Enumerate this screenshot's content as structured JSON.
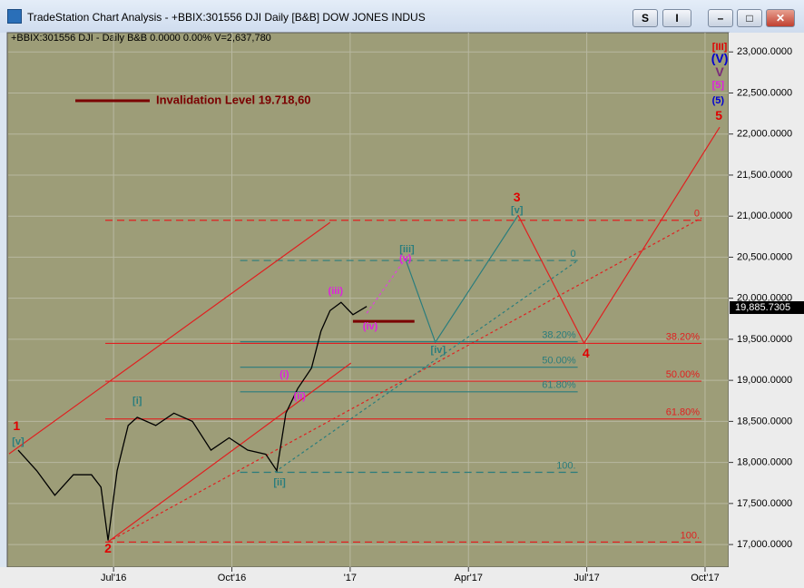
{
  "window": {
    "title": "TradeStation Chart Analysis - +BBIX:301556 DJI Daily [B&B] DOW JONES INDUS",
    "buttons": [
      "S",
      "I"
    ]
  },
  "chart_data": {
    "type": "line",
    "header": "+BBIX:301556 DJI - Daily  B&B  0.0000  0.00%  V=2,637,780",
    "x": [
      3.58,
      4.05,
      4.51,
      4.98,
      5.44,
      5.68,
      5.86,
      6.09,
      6.37,
      6.6,
      7.07,
      7.53,
      8.0,
      8.47,
      8.93,
      9.4,
      9.86,
      10.14,
      10.37,
      10.67,
      11.02,
      11.26,
      11.49,
      11.77,
      12.07,
      12.42
    ],
    "values": [
      18150,
      17900,
      17600,
      17850,
      17850,
      17700,
      17050,
      17900,
      18450,
      18550,
      18450,
      18600,
      18500,
      18150,
      18300,
      18150,
      18100,
      17900,
      18600,
      18900,
      19150,
      19600,
      19850,
      19950,
      19800,
      19900
    ],
    "color": "#000000",
    "last_price": {
      "value": 19885.7305,
      "label": "19,885.7305"
    },
    "xlim": [
      3.35,
      21.53
    ],
    "ylim": [
      16780,
      23080
    ],
    "xticks": [
      {
        "value": 6,
        "label": "Jul'16"
      },
      {
        "value": 9,
        "label": "Oct'16"
      },
      {
        "value": 12,
        "label": "'17"
      },
      {
        "value": 15,
        "label": "Apr'17"
      },
      {
        "value": 18,
        "label": "Jul'17"
      },
      {
        "value": 21,
        "label": "Oct'17"
      }
    ],
    "yticks": [
      {
        "value": 17000,
        "label": "17,000.0000"
      },
      {
        "value": 17500,
        "label": "17,500.0000"
      },
      {
        "value": 18000,
        "label": "18,000.0000"
      },
      {
        "value": 18500,
        "label": "18,500.0000"
      },
      {
        "value": 19000,
        "label": "19,000.0000"
      },
      {
        "value": 19500,
        "label": "19,500.0000"
      },
      {
        "value": 20000,
        "label": "20,000.0000"
      },
      {
        "value": 20500,
        "label": "20,500.0000"
      },
      {
        "value": 21000,
        "label": "21,000.0000"
      },
      {
        "value": 21500,
        "label": "21,500.0000"
      },
      {
        "value": 22000,
        "label": "22,000.0000"
      },
      {
        "value": 22500,
        "label": "22,500.0000"
      },
      {
        "value": 23000,
        "label": "23,000.0000"
      }
    ],
    "grid": true,
    "lines": [
      {
        "x": [
          3.35,
          11.49
        ],
        "values": [
          18105,
          20923
        ],
        "color": "#e02020",
        "dash": false
      },
      {
        "x": [
          5.86,
          12.02
        ],
        "values": [
          17033,
          19210
        ],
        "color": "#e02020",
        "dash": false
      },
      {
        "x": [
          5.86,
          20.91
        ],
        "values": [
          17033,
          20978
        ],
        "color": "#e02020",
        "dash": true
      },
      {
        "x": [
          10.09,
          17.77
        ],
        "values": [
          17884,
          20459
        ],
        "color": "#2a7d7d",
        "dash": true
      },
      {
        "x": [
          12.42,
          13.4
        ],
        "values": [
          19818,
          20481
        ],
        "color": "#e040e0",
        "dash": true
      },
      {
        "x": [
          13.4,
          14.16,
          16.26
        ],
        "values": [
          20481,
          19464,
          21011
        ],
        "color": "#2a7d7d",
        "dash": false
      },
      {
        "x": [
          16.26,
          17.93,
          21.37
        ],
        "values": [
          21011,
          19453,
          22083
        ],
        "color": "#e02020",
        "dash": false
      }
    ],
    "fib_levels": [
      {
        "label": "0",
        "value": 20950,
        "x": [
          5.79,
          20.91
        ],
        "color": "#e02020",
        "dash": true
      },
      {
        "label": "38.20%",
        "value": 19450,
        "x": [
          5.79,
          20.91
        ],
        "color": "#e02020",
        "dash": false
      },
      {
        "label": "50.00%",
        "value": 18990,
        "x": [
          5.79,
          20.91
        ],
        "color": "#e02020",
        "dash": false
      },
      {
        "label": "61.80%",
        "value": 18530,
        "x": [
          5.79,
          20.91
        ],
        "color": "#e02020",
        "dash": false
      },
      {
        "label": "100.",
        "value": 17030,
        "x": [
          5.79,
          20.91
        ],
        "color": "#e02020",
        "dash": true
      },
      {
        "label": "0",
        "value": 20460,
        "x": [
          9.21,
          17.77
        ],
        "color": "#2a7d7d",
        "dash": true
      },
      {
        "label": "38.20%",
        "value": 19470,
        "x": [
          9.21,
          17.77
        ],
        "color": "#2a7d7d",
        "dash": false
      },
      {
        "label": "50.00%",
        "value": 19160,
        "x": [
          9.21,
          17.77
        ],
        "color": "#2a7d7d",
        "dash": false
      },
      {
        "label": "61.80%",
        "value": 18860,
        "x": [
          9.21,
          17.77
        ],
        "color": "#2a7d7d",
        "dash": false
      },
      {
        "label": "100.",
        "value": 17880,
        "x": [
          9.21,
          17.77
        ],
        "color": "#2a7d7d",
        "dash": true
      }
    ],
    "invalidation": {
      "label": "Invalidation Level 19.718,60",
      "value": 19718.6,
      "x": [
        12.07,
        13.63
      ],
      "color": "#7a0000"
    },
    "annotations": [
      {
        "text": "1",
        "x": 3.54,
        "y": 18436,
        "color": "#e00000"
      },
      {
        "text": "[v]",
        "x": 3.58,
        "y": 18249,
        "color": "#2a7d7d"
      },
      {
        "text": "2",
        "x": 5.86,
        "y": 16945,
        "color": "#e00000"
      },
      {
        "text": "[i]",
        "x": 6.6,
        "y": 18746,
        "color": "#2a7d7d"
      },
      {
        "text": "[ii]",
        "x": 10.21,
        "y": 17751,
        "color": "#2a7d7d"
      },
      {
        "text": "(i)",
        "x": 10.33,
        "y": 19066,
        "color": "#e020e0"
      },
      {
        "text": "(ii)",
        "x": 10.72,
        "y": 18801,
        "color": "#e020e0"
      },
      {
        "text": "(iii)",
        "x": 11.63,
        "y": 20083,
        "color": "#e020e0"
      },
      {
        "text": "(iv)",
        "x": 12.51,
        "y": 19652,
        "color": "#e020e0"
      },
      {
        "text": "(v)",
        "x": 13.4,
        "y": 20481,
        "color": "#e020e0"
      },
      {
        "text": "[iii]",
        "x": 13.44,
        "y": 20591,
        "color": "#2a7d7d"
      },
      {
        "text": "[iv]",
        "x": 14.23,
        "y": 19365,
        "color": "#2a7d7d"
      },
      {
        "text": "[v]",
        "x": 16.23,
        "y": 21066,
        "color": "#2a7d7d"
      },
      {
        "text": "3",
        "x": 16.23,
        "y": 21221,
        "color": "#e00000"
      },
      {
        "text": "4",
        "x": 17.98,
        "y": 19320,
        "color": "#e00000"
      },
      {
        "text": "5",
        "x": 21.35,
        "y": 22215,
        "color": "#e00000"
      },
      {
        "text": "[III]",
        "x": 21.37,
        "y": 23055,
        "color": "#e00000"
      },
      {
        "text": "(V)",
        "x": 21.37,
        "y": 22912,
        "color": "#0000d0"
      },
      {
        "text": "V",
        "x": 21.37,
        "y": 22746,
        "color": "#7a2a7a"
      },
      {
        "text": "[5]",
        "x": 21.33,
        "y": 22591,
        "color": "#e020e0"
      },
      {
        "text": "(5)",
        "x": 21.33,
        "y": 22403,
        "color": "#0000d0"
      }
    ]
  }
}
